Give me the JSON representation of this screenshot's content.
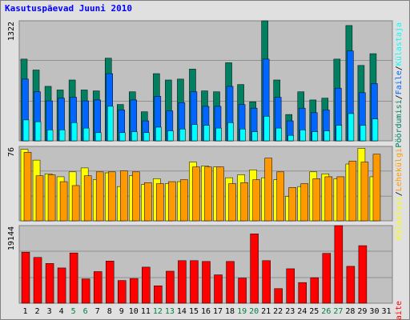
{
  "title": "Kasutuspäevad Juuni 2010",
  "colors": {
    "kulastused": "#ffff00",
    "lehekulgi": "#ff9900",
    "failid": "#0066ff",
    "poordumisi": "#00ffff",
    "unique": "#008060",
    "kbaite": "#ff0000",
    "weekend_label": "#008040",
    "panel_bg": "#c0c0c0"
  },
  "chart_data": [
    {
      "type": "bar",
      "panel": "top",
      "ymax_label": "1322",
      "ylim": [
        0,
        1322
      ],
      "categories": [
        "1",
        "2",
        "3",
        "4",
        "5",
        "6",
        "7",
        "8",
        "9",
        "10",
        "11",
        "12",
        "13",
        "14",
        "15",
        "16",
        "17",
        "18",
        "19",
        "20",
        "21",
        "22",
        "23",
        "24",
        "25",
        "26",
        "27",
        "28",
        "29",
        "30",
        "31"
      ],
      "legend": {
        "sep1": "/",
        "series1": "Pöördumisi",
        "sep2": "/",
        "series2": "Faile",
        "sep3": "/",
        "series3": "Külastaja"
      },
      "series": [
        {
          "name": "Pöördumisi",
          "key": "unique",
          "values": [
            900,
            780,
            600,
            560,
            670,
            560,
            550,
            910,
            400,
            540,
            320,
            740,
            670,
            680,
            790,
            550,
            540,
            860,
            620,
            430,
            1322,
            670,
            290,
            540,
            450,
            470,
            900,
            1270,
            830,
            960,
            0
          ]
        },
        {
          "name": "Faile",
          "key": "failid",
          "values": [
            680,
            540,
            440,
            470,
            480,
            440,
            450,
            740,
            340,
            450,
            220,
            490,
            330,
            420,
            540,
            380,
            380,
            600,
            400,
            360,
            900,
            480,
            220,
            360,
            310,
            340,
            580,
            990,
            530,
            630,
            0
          ]
        },
        {
          "name": "Külastaja",
          "key": "poordumisi",
          "values": [
            230,
            210,
            120,
            120,
            200,
            140,
            90,
            380,
            90,
            100,
            90,
            150,
            110,
            130,
            180,
            170,
            140,
            200,
            130,
            100,
            270,
            140,
            60,
            120,
            100,
            110,
            170,
            300,
            170,
            240,
            0
          ]
        }
      ]
    },
    {
      "type": "bar",
      "panel": "middle",
      "ymax_label": "76",
      "ylim": [
        0,
        76
      ],
      "legend": {
        "series1": "Külastusi",
        "sep": "/",
        "series2": "Lehekülgi"
      },
      "series": [
        {
          "name": "Külastusi",
          "key": "kulastused",
          "values": [
            73,
            62,
            48,
            45,
            50,
            54,
            42,
            49,
            35,
            46,
            37,
            43,
            38,
            40,
            60,
            56,
            55,
            44,
            47,
            52,
            44,
            42,
            25,
            35,
            50,
            48,
            43,
            58,
            74,
            45,
            0
          ]
        },
        {
          "name": "Lehekülgi",
          "key": "lehekulgi",
          "values": [
            70,
            46,
            47,
            40,
            36,
            46,
            50,
            50,
            51,
            50,
            39,
            38,
            40,
            42,
            55,
            55,
            55,
            38,
            39,
            42,
            64,
            50,
            34,
            38,
            43,
            45,
            45,
            61,
            60,
            68,
            0
          ]
        }
      ]
    },
    {
      "type": "bar",
      "panel": "bottom",
      "ymax_label": "19144",
      "ylim": [
        0,
        19144
      ],
      "legend": {
        "series1": "KBaite"
      },
      "series": [
        {
          "name": "KBaite",
          "key": "kbaite",
          "values": [
            12600,
            11300,
            9800,
            8700,
            12400,
            6000,
            7800,
            10400,
            5600,
            6100,
            8900,
            4300,
            7900,
            10500,
            10500,
            10300,
            7000,
            10300,
            6200,
            17100,
            10500,
            3600,
            8500,
            5100,
            6300,
            12300,
            19144,
            9100,
            14200,
            0,
            0
          ]
        }
      ]
    }
  ],
  "weekend_days": [
    5,
    6,
    12,
    13,
    19,
    20,
    26,
    27
  ]
}
